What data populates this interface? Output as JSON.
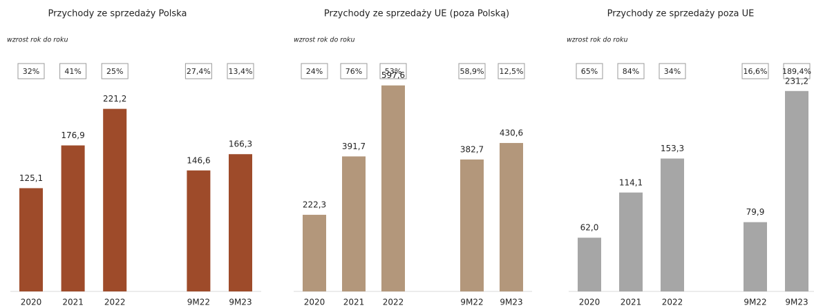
{
  "chart_data": [
    {
      "type": "bar",
      "title": "Przychody ze sprzedaży  Polska",
      "subtitle": "wzrost rok do roku",
      "categories": [
        "2020",
        "2021",
        "2022",
        null,
        "9M22",
        "9M23"
      ],
      "values": [
        125.1,
        176.9,
        221.2,
        null,
        146.6,
        166.3
      ],
      "value_labels": [
        "125,1",
        "176,9",
        "221,2",
        null,
        "146,6",
        "166,3"
      ],
      "annotations": [
        "32%",
        "41%",
        "25%",
        null,
        "27,4%",
        "13,4%"
      ],
      "color": "#9e4b2a",
      "ylim": [
        0,
        251
      ]
    },
    {
      "type": "bar",
      "title": "Przychody ze sprzedaży UE (poza Polską)",
      "subtitle": "wzrost rok do roku",
      "categories": [
        "2020",
        "2021",
        "2022",
        null,
        "9M22",
        "9M23"
      ],
      "values": [
        222.3,
        391.7,
        597.6,
        null,
        382.7,
        430.6
      ],
      "value_labels": [
        "222,3",
        "391,7",
        "597,6",
        null,
        "382,7",
        "430,6"
      ],
      "annotations": [
        "24%",
        "76%",
        "53%",
        null,
        "58,9%",
        "12,5%"
      ],
      "color": "#b3977b",
      "ylim": [
        0,
        601
      ]
    },
    {
      "type": "bar",
      "title": "Przychody ze sprzedaży poza UE",
      "subtitle": "wzrost rok do roku",
      "categories": [
        "2020",
        "2021",
        "2022",
        null,
        "9M22",
        "9M23"
      ],
      "values": [
        62.0,
        114.1,
        153.3,
        null,
        79.9,
        231.2
      ],
      "value_labels": [
        "62,0",
        "114,1",
        "153,3",
        null,
        "79,9",
        "231,2"
      ],
      "annotations": [
        "65%",
        "84%",
        "34%",
        null,
        "16,6%",
        "189,4%"
      ],
      "color": "#a6a6a6",
      "ylim": [
        0,
        239
      ]
    }
  ]
}
